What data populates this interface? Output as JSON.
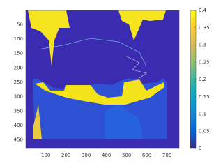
{
  "chart_data": {
    "type": "heatmap",
    "xlim": [
      1,
      760
    ],
    "xticks": [
      100,
      200,
      300,
      400,
      500,
      600,
      700
    ],
    "ylim": [
      1,
      480
    ],
    "y_reversed": true,
    "yticks": [
      50,
      100,
      150,
      200,
      250,
      300,
      350,
      400,
      450
    ],
    "clim": [
      0,
      0.4
    ],
    "cticks": [
      0,
      0.05,
      0.1,
      0.15,
      0.2,
      0.25,
      0.3,
      0.35,
      0.4
    ],
    "colormap": [
      "#352a87",
      "#0363e1",
      "#1485d4",
      "#06a7c6",
      "#38b99e",
      "#92bf73",
      "#d9ba56",
      "#fcce2e",
      "#f9fb0e"
    ],
    "colorbar": true
  }
}
